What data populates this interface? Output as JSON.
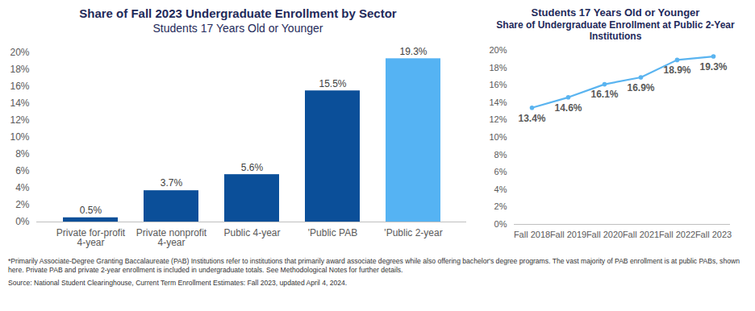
{
  "chart_data": [
    {
      "type": "bar",
      "title": "Share of Fall 2023 Undergraduate Enrollment by Sector",
      "subtitle": "Students 17 Years Old or Younger",
      "categories": [
        "Private for-profit 4-year",
        "Private nonprofit 4-year",
        "Public 4-year",
        "'Public PAB",
        "'Public 2-year"
      ],
      "values": [
        0.5,
        3.7,
        5.6,
        15.5,
        19.3
      ],
      "value_labels": [
        "0.5%",
        "3.7%",
        "5.6%",
        "15.5%",
        "19.3%"
      ],
      "colors": [
        "#0b4f99",
        "#0b4f99",
        "#0b4f99",
        "#0b4f99",
        "#55b3f3"
      ],
      "ylim": [
        0,
        20
      ],
      "yticks": [
        {
          "value": 0,
          "label": "0%"
        },
        {
          "value": 2,
          "label": "2%"
        },
        {
          "value": 4,
          "label": "4%"
        },
        {
          "value": 6,
          "label": "6%"
        },
        {
          "value": 8,
          "label": "8%"
        },
        {
          "value": 10,
          "label": "10%"
        },
        {
          "value": 12,
          "label": "12%"
        },
        {
          "value": 14,
          "label": "14%"
        },
        {
          "value": 16,
          "label": "16%"
        },
        {
          "value": 18,
          "label": "18%"
        },
        {
          "value": 20,
          "label": "20%"
        }
      ],
      "grid": false,
      "data_labels": true
    },
    {
      "type": "line",
      "title": "Students 17 Years Old or Younger",
      "subtitle": "Share of Undergraduate Enrollment at Public 2-Year Institutions",
      "categories": [
        "Fall 2018",
        "Fall 2019",
        "Fall 2020",
        "Fall 2021",
        "Fall 2022",
        "Fall 2023"
      ],
      "values": [
        13.4,
        14.6,
        16.1,
        16.9,
        18.9,
        19.3
      ],
      "value_labels": [
        "13.4%",
        "14.6%",
        "16.1%",
        "16.9%",
        "18.9%",
        "19.3%"
      ],
      "color": "#5ab4f0",
      "marker": "circle",
      "ylim": [
        0,
        20
      ],
      "yticks": [
        {
          "value": 0,
          "label": "0%"
        },
        {
          "value": 2,
          "label": "2%"
        },
        {
          "value": 4,
          "label": "4%"
        },
        {
          "value": 6,
          "label": "6%"
        },
        {
          "value": 8,
          "label": "8%"
        },
        {
          "value": 10,
          "label": "10%"
        },
        {
          "value": 12,
          "label": "12%"
        },
        {
          "value": 14,
          "label": "14%"
        },
        {
          "value": 16,
          "label": "16%"
        },
        {
          "value": 18,
          "label": "18%"
        },
        {
          "value": 20,
          "label": "20%"
        }
      ],
      "grid": false,
      "data_labels": true
    }
  ],
  "footnote": "*Primarily Associate-Degree Granting Baccalaureate (PAB) Institutions refer to institutions that primarily award associate degrees while also offering bachelor's degree programs. The vast majority of PAB enrollment is at public PABs, shown here. Private PAB and private 2-year enrollment is included in undergraduate totals. See Methodological Notes for further details.",
  "source": "Source: National Student Clearinghouse, Current Term Enrollment Estimates: Fall 2023, updated April 4, 2024."
}
